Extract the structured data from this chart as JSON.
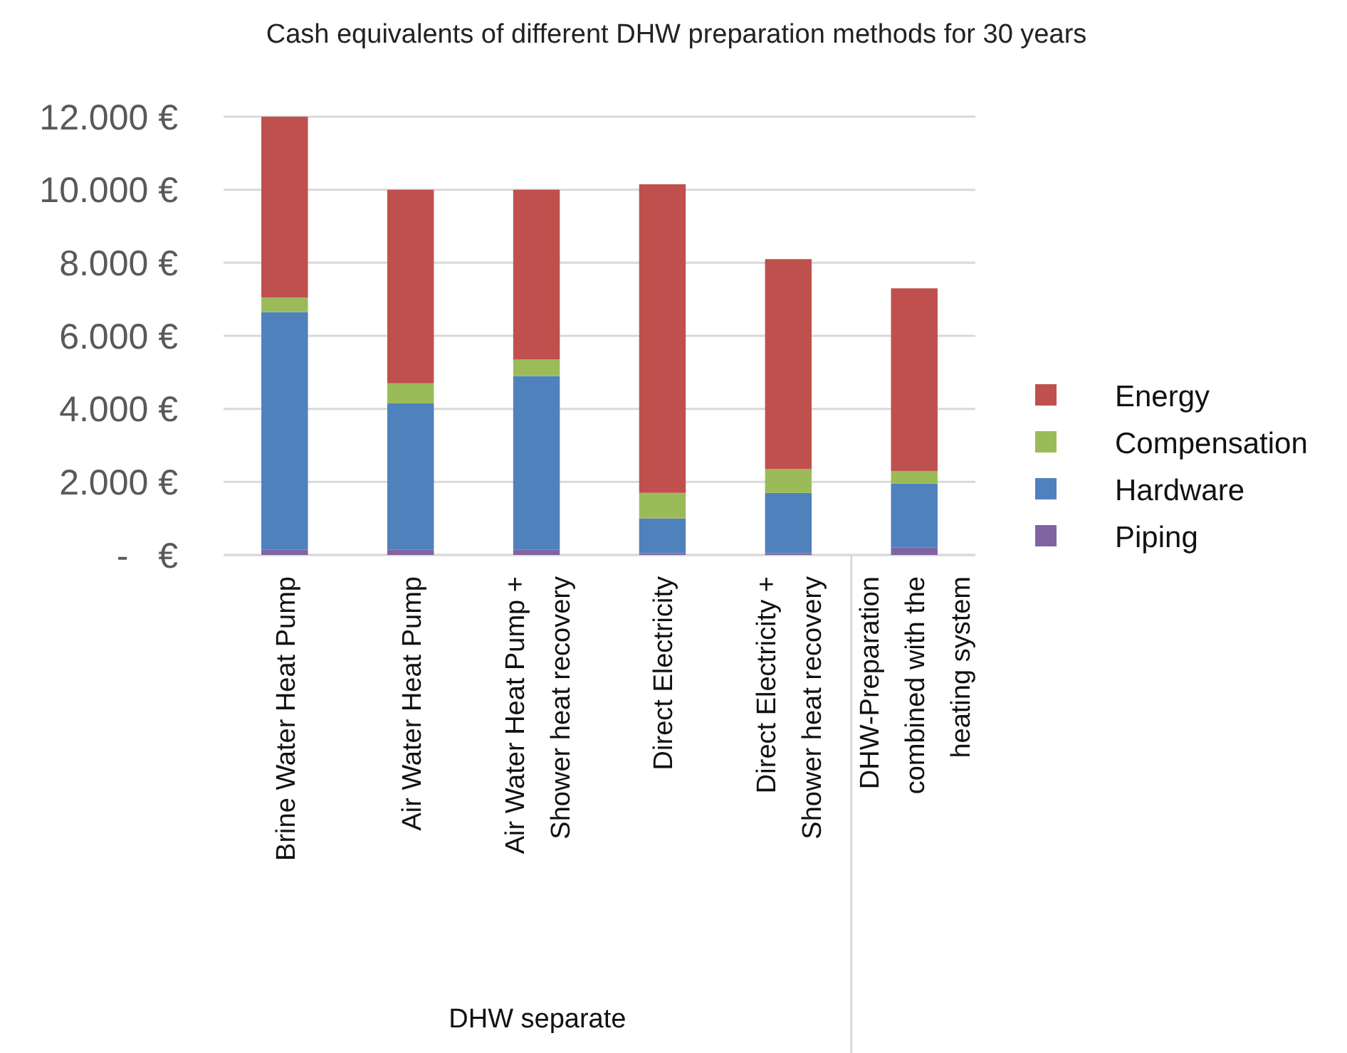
{
  "chart_data": {
    "type": "bar",
    "title": "Cash equivalents of different DHW preparation methods for 30 years",
    "categories": [
      "Brine Water Heat Pump",
      "Air Water Heat Pump",
      "Air Water Heat Pump +\nShower heat recovery",
      "Direct Electricity",
      "Direct Electricity +\nShower heat recovery",
      "DHW-Preparation\ncombined with the\nheating system"
    ],
    "stacked": true,
    "series": [
      {
        "name": "Piping",
        "color": "#8064a2",
        "values": [
          150,
          150,
          150,
          50,
          50,
          200
        ]
      },
      {
        "name": "Hardware",
        "color": "#4f81bd",
        "values": [
          6500,
          4000,
          4750,
          950,
          1650,
          1750
        ]
      },
      {
        "name": "Compensation",
        "color": "#9bbb59",
        "values": [
          400,
          550,
          450,
          700,
          650,
          350
        ]
      },
      {
        "name": "Energy",
        "color": "#c0504d",
        "values": [
          4950,
          5300,
          4650,
          8450,
          5750,
          5000
        ]
      }
    ],
    "ylim": [
      0,
      12000
    ],
    "yticks": [
      {
        "value": 0,
        "label": "-   €"
      },
      {
        "value": 2000,
        "label": "2.000 €"
      },
      {
        "value": 4000,
        "label": "4.000 €"
      },
      {
        "value": 6000,
        "label": "6.000 €"
      },
      {
        "value": 8000,
        "label": "8.000 €"
      },
      {
        "value": 10000,
        "label": "10.000 €"
      },
      {
        "value": 12000,
        "label": "12.000 €"
      }
    ],
    "grid": "y",
    "legend": "right",
    "annotations": [
      "DHW separate"
    ]
  }
}
